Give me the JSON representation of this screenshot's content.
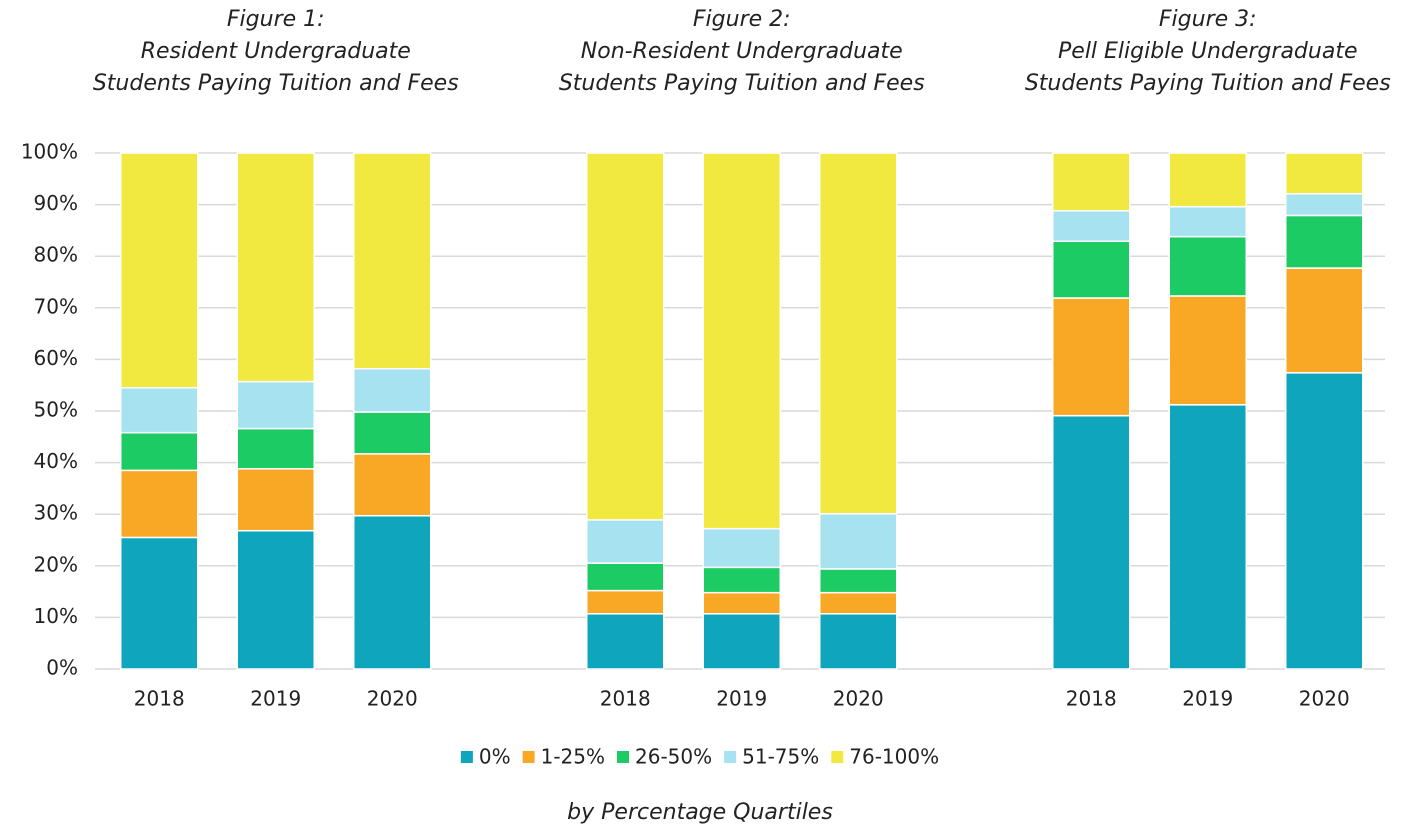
{
  "chart_data": {
    "type": "stacked_bar",
    "group_titles": [
      [
        "Figure 1:",
        "Resident Undergraduate",
        "Students Paying Tuition and Fees"
      ],
      [
        "Figure 2:",
        "Non-Resident Undergraduate",
        "Students Paying Tuition and Fees"
      ],
      [
        "Figure 3:",
        "Pell Eligible Undergraduate",
        "Students Paying Tuition and Fees"
      ]
    ],
    "categories": [
      "2018",
      "2019",
      "2020",
      "2018",
      "2019",
      "2020",
      "2018",
      "2019",
      "2020"
    ],
    "series": [
      {
        "name": "0%",
        "color": "#0fa6bd",
        "values": [
          25.5,
          26.8,
          29.7,
          10.7,
          10.7,
          10.7,
          49.1,
          51.2,
          57.4
        ]
      },
      {
        "name": "1-25%",
        "color": "#f9a825",
        "values": [
          13.0,
          12.0,
          12.0,
          4.5,
          4.1,
          4.1,
          22.8,
          21.1,
          20.3
        ]
      },
      {
        "name": "26-50%",
        "color": "#1ccb63",
        "values": [
          7.3,
          7.8,
          8.1,
          5.3,
          4.9,
          4.6,
          11.0,
          11.5,
          10.2
        ]
      },
      {
        "name": "51-75%",
        "color": "#a6e2ef",
        "values": [
          8.7,
          9.1,
          8.4,
          8.4,
          7.5,
          10.7,
          5.9,
          5.8,
          4.2
        ]
      },
      {
        "name": "76-100%",
        "color": "#f2e940",
        "values": [
          45.5,
          44.3,
          41.8,
          71.1,
          72.8,
          69.9,
          11.2,
          10.4,
          7.9
        ]
      }
    ],
    "ylim": [
      0,
      100
    ],
    "yticks": [
      {
        "value": 0,
        "label": "0%"
      },
      {
        "value": 10,
        "label": "10%"
      },
      {
        "value": 20,
        "label": "20%"
      },
      {
        "value": 30,
        "label": "30%"
      },
      {
        "value": 40,
        "label": "40%"
      },
      {
        "value": 50,
        "label": "50%"
      },
      {
        "value": 60,
        "label": "60%"
      },
      {
        "value": 70,
        "label": "70%"
      },
      {
        "value": 80,
        "label": "80%"
      },
      {
        "value": 90,
        "label": "90%"
      },
      {
        "value": 100,
        "label": "100%"
      }
    ],
    "grid": true,
    "legend": "bottom",
    "caption": "by Percentage Quartiles"
  }
}
